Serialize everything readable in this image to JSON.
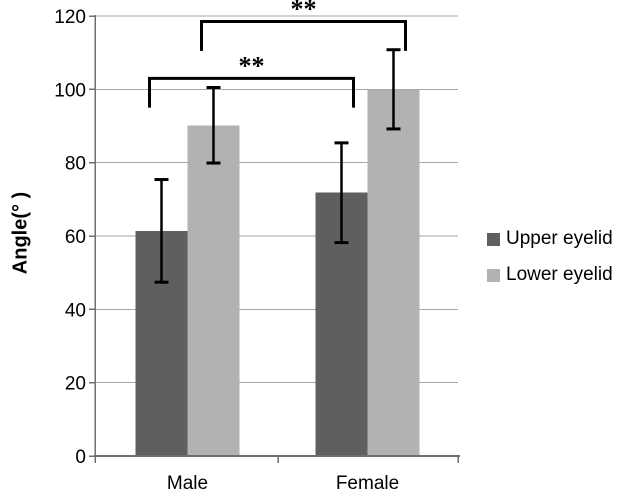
{
  "chart_data": {
    "type": "bar",
    "title": "",
    "categories": [
      "Male",
      "Female"
    ],
    "series": [
      {
        "name": "Upper eyelid",
        "color": "#5f5f5f",
        "values": [
          61.4,
          71.8
        ],
        "errors": [
          14.0,
          13.6
        ]
      },
      {
        "name": "Lower eyelid",
        "color": "#b2b2b2",
        "values": [
          90.2,
          100.0
        ],
        "errors": [
          10.3,
          10.8
        ]
      }
    ],
    "xlabel": "",
    "ylabel": "Angle(° )",
    "ylim": [
      0,
      120
    ],
    "yticks": [
      0,
      20,
      40,
      60,
      80,
      100,
      120
    ],
    "grid": true,
    "legend_position": "right",
    "significance_brackets": [
      {
        "label": "**",
        "series_index": 0,
        "between": [
          "Male",
          "Female"
        ],
        "bar_y": 103,
        "tip_y": 95
      },
      {
        "label": "**",
        "series_index": 1,
        "between": [
          "Male",
          "Female"
        ],
        "bar_y": 118.5,
        "tip_y": 110.5
      }
    ],
    "colors": {
      "grid": "#a6a6a6",
      "axis": "#6f6f6f",
      "error_bar": "#000000",
      "bracket": "#000000",
      "text": "#000000"
    }
  }
}
